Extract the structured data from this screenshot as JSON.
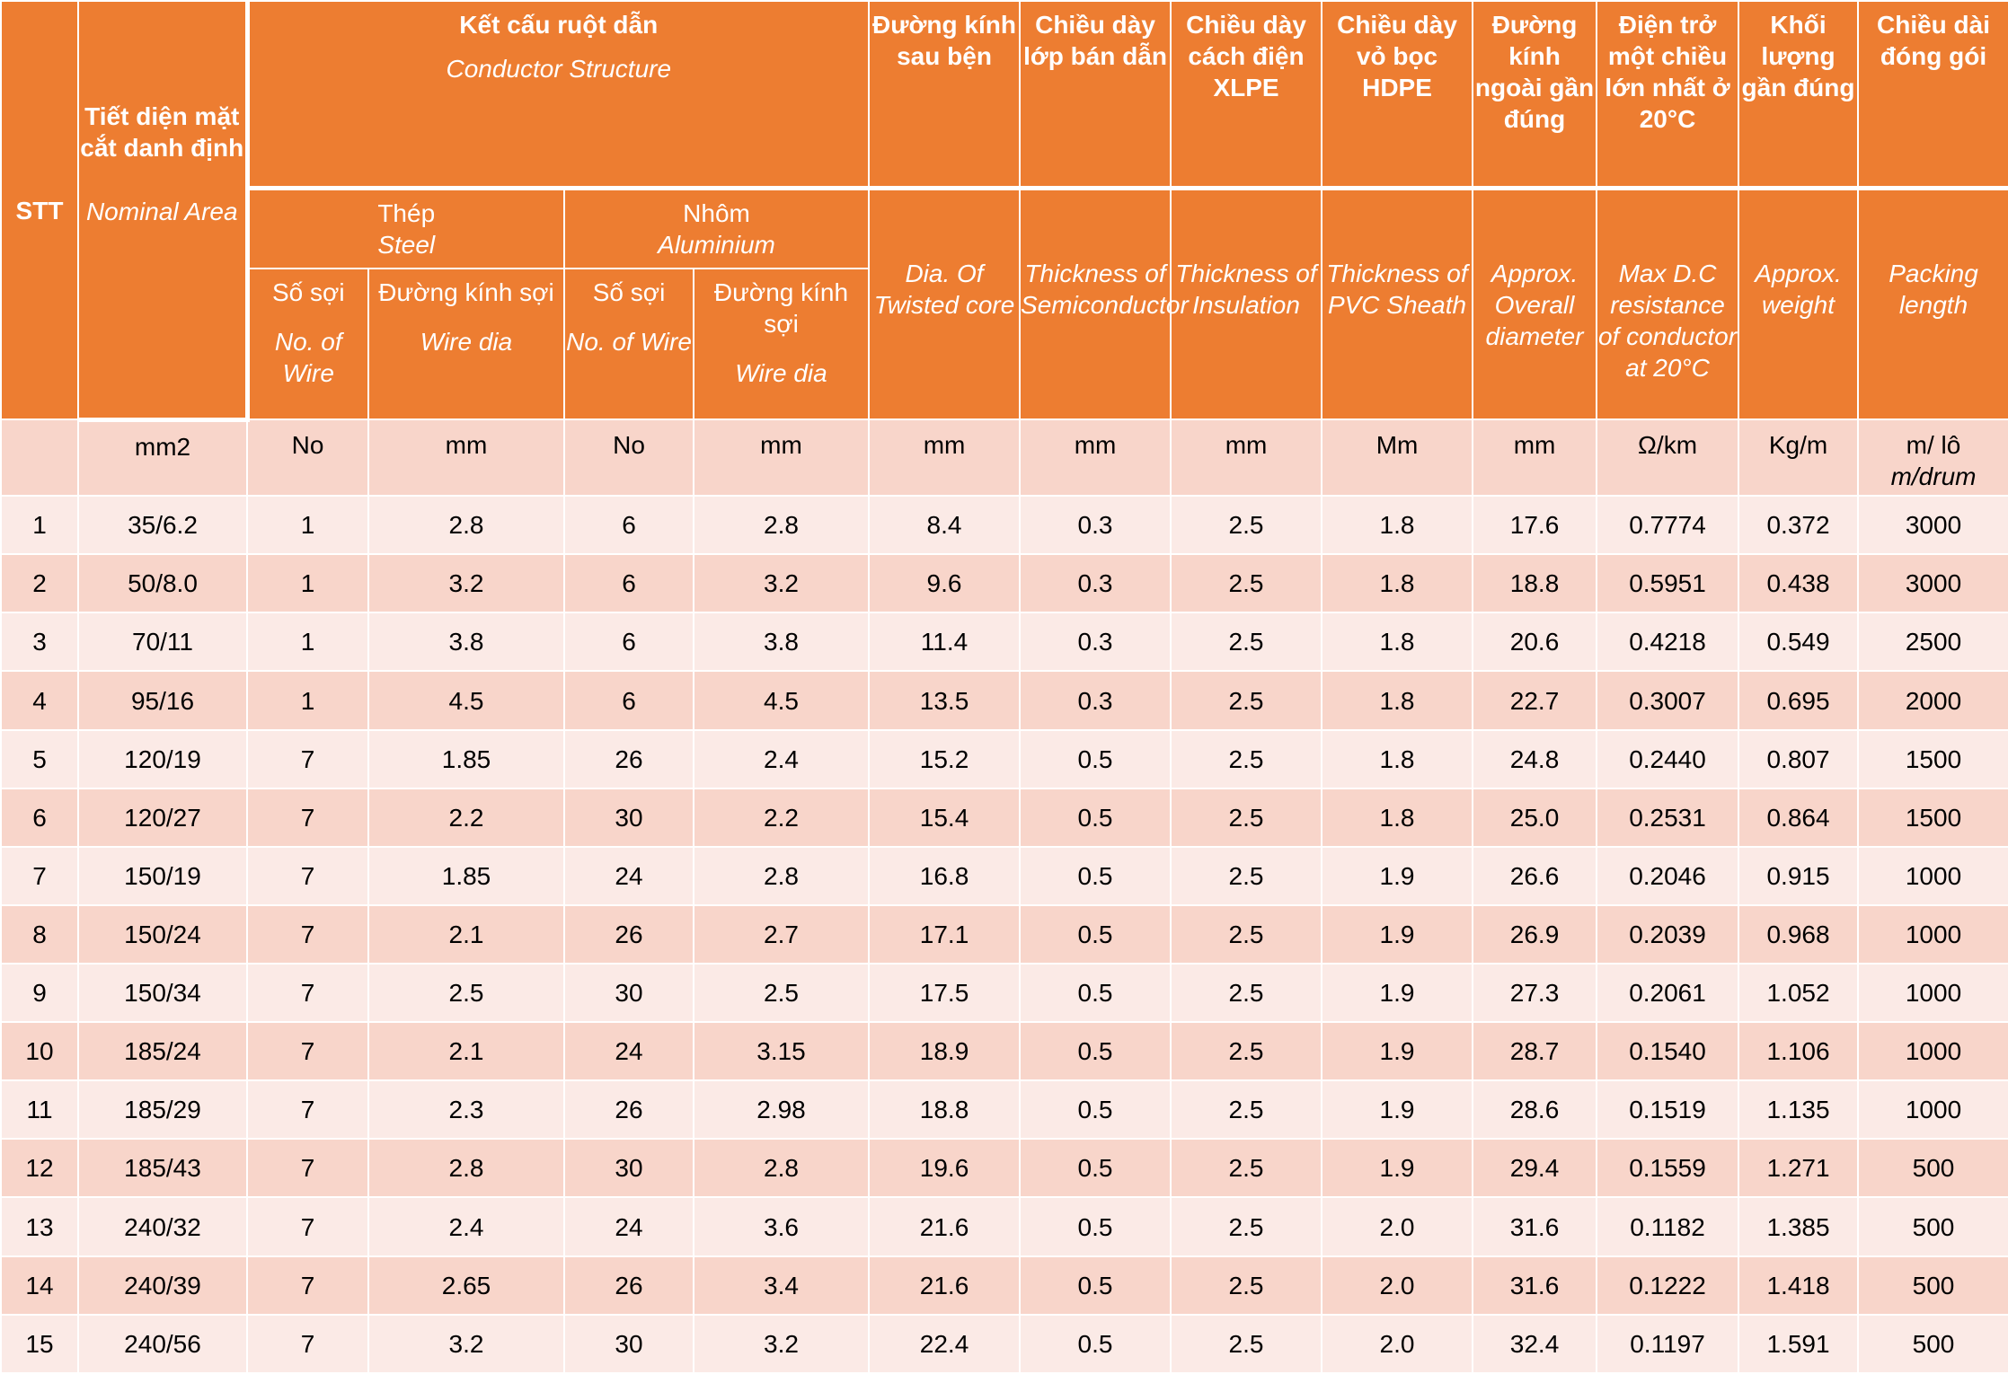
{
  "headers": {
    "stt": "STT",
    "nominal": {
      "vi": "Tiết diện mặt cắt danh định",
      "en": "Nominal Area"
    },
    "conductor": {
      "vi": "Kết cấu ruột dẫn",
      "en": "Conductor Structure"
    },
    "steel": {
      "vi": "Thép",
      "en": "Steel"
    },
    "aluminium": {
      "vi": "Nhôm",
      "en": "Aluminium"
    },
    "steel_no": {
      "vi": "Số sợi",
      "en": "No. of Wire"
    },
    "steel_dia": {
      "vi": "Đường kính sợi",
      "en": "Wire dia"
    },
    "al_no": {
      "vi": "Số sợi",
      "en": "No. of Wire"
    },
    "al_dia": {
      "vi": "Đường kính sợi",
      "en": "Wire dia"
    },
    "twisted": {
      "vi": "Đường kính sau bện",
      "en": "Dia. Of Twisted core"
    },
    "semicon": {
      "vi": "Chiều dày lớp bán dẫn",
      "en": "Thickness of Semiconductor"
    },
    "insulation": {
      "vi": "Chiều dày cách điện XLPE",
      "en": "Thickness of Insulation"
    },
    "sheath": {
      "vi": "Chiều dày vỏ bọc HDPE",
      "en": "Thickness of PVC Sheath"
    },
    "overall": {
      "vi": "Đường kính ngoài gần đúng",
      "en": "Approx. Overall diameter"
    },
    "resistance": {
      "vi": "Điện trở một chiều lớn nhất ở 20°C",
      "en": "Max D.C resistance of conductor at 20°C"
    },
    "weight": {
      "vi": "Khối lượng gần đúng",
      "en": "Approx. weight"
    },
    "packing": {
      "vi": "Chiều dài đóng gói",
      "en": "Packing length"
    }
  },
  "units": [
    "",
    "mm2",
    "No",
    "mm",
    "No",
    "mm",
    "mm",
    "mm",
    "mm",
    "Mm",
    "mm",
    "Ω/km",
    "Kg/m",
    "m/ lô"
  ],
  "units_packing_en": "m/drum",
  "rows": [
    [
      "1",
      "35/6.2",
      "1",
      "2.8",
      "6",
      "2.8",
      "8.4",
      "0.3",
      "2.5",
      "1.8",
      "17.6",
      "0.7774",
      "0.372",
      "3000"
    ],
    [
      "2",
      "50/8.0",
      "1",
      "3.2",
      "6",
      "3.2",
      "9.6",
      "0.3",
      "2.5",
      "1.8",
      "18.8",
      "0.5951",
      "0.438",
      "3000"
    ],
    [
      "3",
      "70/11",
      "1",
      "3.8",
      "6",
      "3.8",
      "11.4",
      "0.3",
      "2.5",
      "1.8",
      "20.6",
      "0.4218",
      "0.549",
      "2500"
    ],
    [
      "4",
      "95/16",
      "1",
      "4.5",
      "6",
      "4.5",
      "13.5",
      "0.3",
      "2.5",
      "1.8",
      "22.7",
      "0.3007",
      "0.695",
      "2000"
    ],
    [
      "5",
      "120/19",
      "7",
      "1.85",
      "26",
      "2.4",
      "15.2",
      "0.5",
      "2.5",
      "1.8",
      "24.8",
      "0.2440",
      "0.807",
      "1500"
    ],
    [
      "6",
      "120/27",
      "7",
      "2.2",
      "30",
      "2.2",
      "15.4",
      "0.5",
      "2.5",
      "1.8",
      "25.0",
      "0.2531",
      "0.864",
      "1500"
    ],
    [
      "7",
      "150/19",
      "7",
      "1.85",
      "24",
      "2.8",
      "16.8",
      "0.5",
      "2.5",
      "1.9",
      "26.6",
      "0.2046",
      "0.915",
      "1000"
    ],
    [
      "8",
      "150/24",
      "7",
      "2.1",
      "26",
      "2.7",
      "17.1",
      "0.5",
      "2.5",
      "1.9",
      "26.9",
      "0.2039",
      "0.968",
      "1000"
    ],
    [
      "9",
      "150/34",
      "7",
      "2.5",
      "30",
      "2.5",
      "17.5",
      "0.5",
      "2.5",
      "1.9",
      "27.3",
      "0.2061",
      "1.052",
      "1000"
    ],
    [
      "10",
      "185/24",
      "7",
      "2.1",
      "24",
      "3.15",
      "18.9",
      "0.5",
      "2.5",
      "1.9",
      "28.7",
      "0.1540",
      "1.106",
      "1000"
    ],
    [
      "11",
      "185/29",
      "7",
      "2.3",
      "26",
      "2.98",
      "18.8",
      "0.5",
      "2.5",
      "1.9",
      "28.6",
      "0.1519",
      "1.135",
      "1000"
    ],
    [
      "12",
      "185/43",
      "7",
      "2.8",
      "30",
      "2.8",
      "19.6",
      "0.5",
      "2.5",
      "1.9",
      "29.4",
      "0.1559",
      "1.271",
      "500"
    ],
    [
      "13",
      "240/32",
      "7",
      "2.4",
      "24",
      "3.6",
      "21.6",
      "0.5",
      "2.5",
      "2.0",
      "31.6",
      "0.1182",
      "1.385",
      "500"
    ],
    [
      "14",
      "240/39",
      "7",
      "2.65",
      "26",
      "3.4",
      "21.6",
      "0.5",
      "2.5",
      "2.0",
      "31.6",
      "0.1222",
      "1.418",
      "500"
    ],
    [
      "15",
      "240/56",
      "7",
      "3.2",
      "30",
      "3.2",
      "22.4",
      "0.5",
      "2.5",
      "2.0",
      "32.4",
      "0.1197",
      "1.591",
      "500"
    ]
  ]
}
